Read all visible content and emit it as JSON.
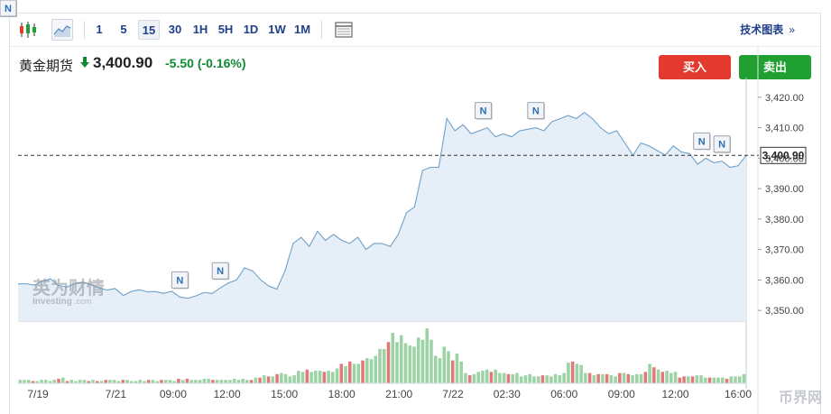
{
  "toolbar": {
    "chart_type_icons": [
      "candlestick-icon",
      "area-chart-icon"
    ],
    "intervals": [
      "1",
      "5",
      "15",
      "30",
      "1H",
      "5H",
      "1D",
      "1W",
      "1M"
    ],
    "active_interval": "15",
    "table_icon": "table-icon",
    "tech_chart_label": "技术图表",
    "tech_chart_chevron": "»"
  },
  "instrument": {
    "name": "黄金期货",
    "direction": "down-arrow-icon",
    "price": "3,400.90",
    "change": "-5.50",
    "change_pct": "(-0.16%)",
    "change_color": "#0e8a34"
  },
  "actions": {
    "buy_label": "买入",
    "sell_label": "卖出",
    "buy_color": "#e23a2e",
    "sell_color": "#21a032"
  },
  "watermark": {
    "brand": "英为财情",
    "site": "Investing",
    "site_suffix": ".com",
    "corner_mark": "币界网"
  },
  "chart_data": {
    "type": "area",
    "y_axis": {
      "ticks": [
        "3,420.00",
        "3,410.00",
        "3,400.00",
        "3,390.00",
        "3,380.00",
        "3,370.00",
        "3,360.00",
        "3,350.00"
      ],
      "ylim": [
        3346.5,
        3423.5
      ]
    },
    "current_price_label": "3,400.90",
    "current_price": 3400.9,
    "x_axis": {
      "ticks": [
        "7/19",
        "7/21",
        "09:00",
        "12:00",
        "15:00",
        "18:00",
        "21:00",
        "7/22",
        "02:30",
        "06:00",
        "09:00",
        "12:00",
        "16:00"
      ],
      "tick_positions": [
        0,
        14.5,
        23,
        31,
        39.5,
        48,
        56.5,
        64.5,
        72.5,
        81,
        89.5,
        97.5,
        108
      ]
    },
    "n_markers_x": [
      20,
      25,
      57.5,
      64,
      84.5,
      87,
      92,
      94
    ],
    "series": [
      {
        "values": [
          3358.7,
          3358.8,
          3358.3,
          3359.6,
          3360.4,
          3358.2,
          3357.7,
          3358.8,
          3359.3,
          3358.5,
          3357.4,
          3356.7,
          3357.2,
          3354.9,
          3356.2,
          3356.8,
          3356.1,
          3356.2,
          3355.6,
          3356.3,
          3354.4,
          3354.0,
          3354.8,
          3355.9,
          3355.6,
          3357.4,
          3359.0,
          3360.0,
          3364.0,
          3363.0,
          3360.0,
          3358.0,
          3357.0,
          3363.0,
          3372.0,
          3374.0,
          3371.0,
          3376.0,
          3373.0,
          3375.0,
          3373.0,
          3372.0,
          3374.0,
          3370.0,
          3372.0,
          3372.0,
          3371.0,
          3375.0,
          3382.0,
          3384.0,
          3396.0,
          3397.0,
          3397.0,
          3413.0,
          3409.0,
          3411.0,
          3408.0,
          3409.0,
          3410.0,
          3407.0,
          3408.0,
          3407.0,
          3409.0,
          3409.5,
          3410.0,
          3409.0,
          3412.0,
          3413.0,
          3414.0,
          3413.0,
          3415.0,
          3413.0,
          3410.0,
          3408.0,
          3409.0,
          3405.0,
          3401.0,
          3405.0,
          3404.0,
          3402.5,
          3401.0,
          3404.0,
          3402.0,
          3401.5,
          3398.0,
          3400.0,
          3398.5,
          3399.0,
          3397.0,
          3397.5,
          3400.9
        ]
      }
    ],
    "volume": {
      "values": [
        3,
        3,
        3,
        2,
        2,
        3,
        3,
        2,
        3,
        4,
        5,
        2,
        3,
        2,
        3,
        3,
        2,
        3,
        2,
        2,
        3,
        3,
        3,
        2,
        3,
        3,
        2,
        2,
        3,
        2,
        3,
        3,
        2,
        3,
        3,
        3,
        2,
        4,
        3,
        4,
        3,
        3,
        3,
        4,
        4,
        3,
        3,
        3,
        3,
        3,
        4,
        3,
        4,
        3,
        3,
        5,
        5,
        7,
        6,
        6,
        8,
        9,
        8,
        6,
        7,
        11,
        10,
        12,
        10,
        11,
        11,
        10,
        11,
        10,
        13,
        17,
        15,
        19,
        17,
        17,
        20,
        22,
        21,
        24,
        30,
        30,
        36,
        44,
        36,
        42,
        35,
        33,
        32,
        40,
        38,
        48,
        38,
        24,
        22,
        32,
        28,
        20,
        26,
        19,
        9,
        7,
        8,
        10,
        11,
        12,
        10,
        12,
        9,
        9,
        8,
        8,
        9,
        6,
        7,
        8,
        6,
        6,
        7,
        7,
        6,
        8,
        7,
        9,
        18,
        19,
        17,
        16,
        9,
        9,
        7,
        8,
        8,
        8,
        7,
        6,
        9,
        9,
        8,
        7,
        8,
        8,
        10,
        17,
        14,
        12,
        10,
        11,
        9,
        10,
        5,
        6,
        6,
        6,
        7,
        7,
        5,
        5,
        5,
        5,
        5,
        4,
        6,
        6,
        6,
        8
      ],
      "up_color": "#9bd3a4",
      "down_color": "#e07a7a"
    },
    "line_color": "#6fa1c9",
    "fill_color": "#e6eef7",
    "grid": false
  }
}
